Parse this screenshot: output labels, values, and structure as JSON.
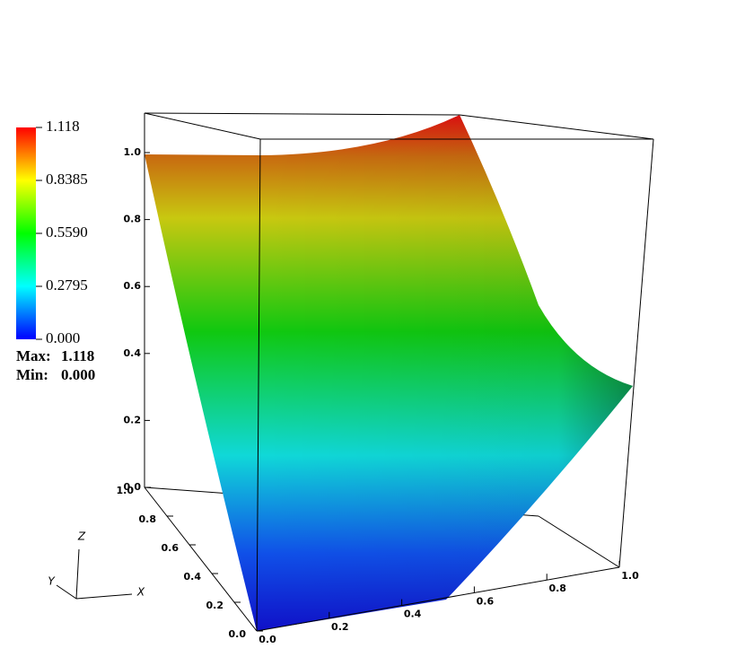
{
  "chart_data": {
    "type": "surface3d",
    "xlim": [
      0,
      1
    ],
    "ylim": [
      0,
      1
    ],
    "zlim": [
      0,
      1.118
    ],
    "xticks": [
      {
        "value": 0,
        "label": "0.0"
      },
      0.2,
      0.4,
      0.6,
      0.8,
      {
        "value": 1,
        "label": "1.0"
      }
    ],
    "yticks": [
      {
        "value": 0,
        "label": "0.0"
      },
      0.2,
      0.4,
      0.6,
      0.8,
      {
        "value": 1,
        "label": "1.0"
      }
    ],
    "zticks": [
      {
        "value": 0,
        "label": "0.0"
      },
      0.2,
      0.4,
      0.6,
      0.8,
      {
        "value": 1,
        "label": "1.0"
      }
    ],
    "axis_titles": [
      "X",
      "Y",
      "Z"
    ],
    "colorbar": {
      "lim": [
        0,
        1.118
      ],
      "ticks": [
        1.118,
        0.8385,
        {
          "value": 0.559,
          "label": "0.5590"
        },
        0.2795,
        {
          "value": 0,
          "label": "0.000"
        }
      ],
      "max_label": "Max:",
      "max": 1.118,
      "min_label": "Min:",
      "min": {
        "value": 0,
        "label": "0.000"
      }
    }
  }
}
